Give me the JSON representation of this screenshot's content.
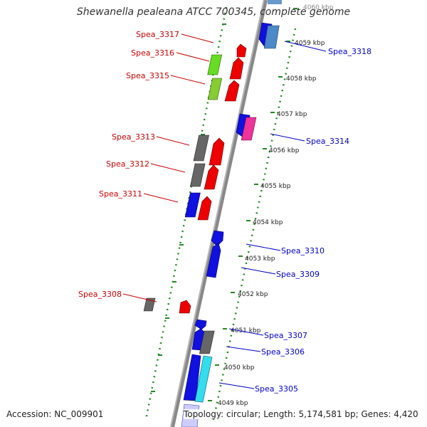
{
  "title": "Shewanella pealeana ATCC 700345, complete genome",
  "accession": "Accession: NC_009901",
  "topology": "Topology: circular; Length: 5,174,581 bp; Genes: 4,420",
  "colors": {
    "backbone": "#888888",
    "tick_green": "#228B22",
    "left_label": "#cc0000",
    "right_label": "#0000cc"
  },
  "kbp_ticks": [
    "4060 kbp",
    "4059 kbp",
    "4058 kbp",
    "4057 kbp",
    "4056 kbp",
    "4055 kbp",
    "4054 kbp",
    "4053 kbp",
    "4052 kbp",
    "4051 kbp",
    "4050 kbp",
    "4049 kbp"
  ],
  "left_genes": [
    "Spea_3317",
    "Spea_3316",
    "Spea_3315",
    "Spea_3313",
    "Spea_3312",
    "Spea_3311",
    "Spea_3308"
  ],
  "right_genes": [
    "Spea_3318",
    "Spea_3314",
    "Spea_3310",
    "Spea_3309",
    "Spea_3307",
    "Spea_3306",
    "Spea_3305"
  ]
}
